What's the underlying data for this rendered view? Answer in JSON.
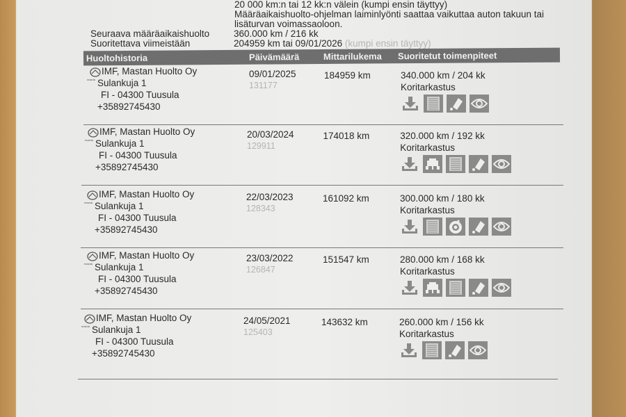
{
  "intro": {
    "line0": "20 000 km:n tai 12 kk:n välein (kumpi ensin täyttyy)",
    "line1": "Määräaikaishuolto-ohjelman laiminlyönti saattaa vaikuttaa auton takuun tai",
    "line2": "lisäturvan voimassaoloon.",
    "next_label": "Seuraava määräaikaishuolto",
    "next_value": "360.000 km / 216 kk",
    "due_label": "Suoritettava viimeistään",
    "due_value": "204959 km tai 09/01/2026",
    "due_note": "(kumpi ensin täyttyy)"
  },
  "table": {
    "headers": [
      "Huoltohistoria",
      "Päivämäärä",
      "Mittarilukema",
      "Suoritetut toimenpiteet"
    ],
    "brand_logo": "mazda",
    "rows": [
      {
        "name": "IMF, Mastan Huolto Oy",
        "street": "Sulankuja 1",
        "city": "FI - 04300 Tuusula",
        "phone": "+35892745430",
        "date": "09/01/2025",
        "ref": "131177",
        "odometer": "184959 km",
        "service": "340.000 km / 204 kk",
        "extra": "Koritarkastus",
        "icons": [
          "download-icon",
          "document-icon",
          "oil-can-icon",
          "eye-icon"
        ]
      },
      {
        "name": "IMF, Mastan Huolto Oy",
        "street": "Sulankuja 1",
        "city": "FI - 04300 Tuusula",
        "phone": "+35892745430",
        "date": "20/03/2024",
        "ref": "129911",
        "odometer": "174018 km",
        "service": "320.000 km / 192 kk",
        "extra": "Koritarkastus",
        "icons": [
          "download-icon",
          "car-lift-icon",
          "document-icon",
          "oil-can-icon",
          "eye-icon"
        ]
      },
      {
        "name": "IMF, Mastan Huolto Oy",
        "street": "Sulankuja 1",
        "city": "FI - 04300 Tuusula",
        "phone": "+35892745430",
        "date": "22/03/2023",
        "ref": "128343",
        "odometer": "161092 km",
        "service": "300.000 km / 180 kk",
        "extra": "Koritarkastus",
        "icons": [
          "download-icon",
          "document-icon",
          "brake-disc-icon",
          "oil-can-icon",
          "eye-icon"
        ]
      },
      {
        "name": "IMF, Mastan Huolto Oy",
        "street": "Sulankuja 1",
        "city": "FI - 04300 Tuusula",
        "phone": "+35892745430",
        "date": "23/03/2022",
        "ref": "126847",
        "odometer": "151547 km",
        "service": "280.000 km / 168 kk",
        "extra": "Koritarkastus",
        "icons": [
          "download-icon",
          "car-lift-icon",
          "document-icon",
          "oil-can-icon",
          "eye-icon"
        ]
      },
      {
        "name": "IMF, Mastan Huolto Oy",
        "street": "Sulankuja 1",
        "city": "FI - 04300 Tuusula",
        "phone": "+35892745430",
        "date": "24/05/2021",
        "ref": "125403",
        "odometer": "143632 km",
        "service": "260.000 km / 156 kk",
        "extra": "Koritarkastus",
        "icons": [
          "download-icon",
          "document-icon",
          "oil-can-icon",
          "eye-icon"
        ]
      }
    ]
  }
}
